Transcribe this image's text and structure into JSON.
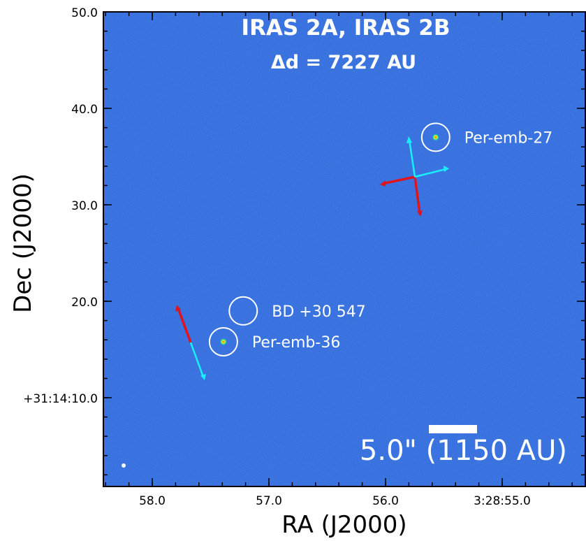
{
  "figure": {
    "title": "IRAS 2A, IRAS 2B",
    "subtitle": "Δd = 7227 AU",
    "xlabel": "RA (J2000)",
    "ylabel": "Dec (J2000)",
    "x_ticks": [
      "58.0",
      "57.0",
      "56.0",
      "3:28:55.0"
    ],
    "y_ticks": [
      "50.0",
      "40.0",
      "30.0",
      "20.0",
      "+31:14:10.0"
    ],
    "scale_bar_label": "5.0\" (1150 AU)",
    "background_color": "#2f6ee0",
    "redshifted_color": "#e0141e",
    "blueshifted_color": "#19f0ff"
  },
  "sources": [
    {
      "name": "Per-emb-27",
      "label": "Per-emb-27",
      "ra_sec": 55.57,
      "dec_arcsec": 37.0
    },
    {
      "name": "BD +30 547",
      "label": "BD +30 547",
      "ra_sec": 57.22,
      "dec_arcsec": 19.0
    },
    {
      "name": "Per-emb-36",
      "label": "Per-emb-36",
      "ra_sec": 57.39,
      "dec_arcsec": 15.8
    }
  ]
}
